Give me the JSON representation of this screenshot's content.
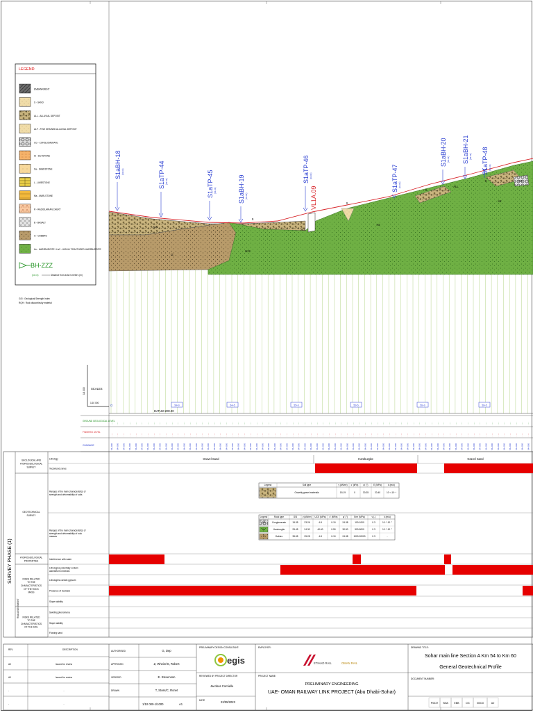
{
  "legend": {
    "title": "LEGEND",
    "items": [
      {
        "code": "EMB",
        "label": "EMBANKMENT"
      },
      {
        "code": "S",
        "label": "S - SAND"
      },
      {
        "code": "ALL",
        "label": "ALL - ALLUVIAL DEPOSIT"
      },
      {
        "code": "ALF",
        "label": "ALF - FINE GRAINED ALLUVIAL DEPOSIT"
      },
      {
        "code": "CG",
        "label": "CG - CONGLOMERATE"
      },
      {
        "code": "Si",
        "label": "Si - SILTSTONE"
      },
      {
        "code": "Sa",
        "label": "Sa - SANDSTONE"
      },
      {
        "code": "L",
        "label": "L - LIMESTONE"
      },
      {
        "code": "Ma",
        "label": "Ma - MARLSTONE"
      },
      {
        "code": "R",
        "label": "R - RADIOLARIAN CHERT"
      },
      {
        "code": "B",
        "label": "B - BASALT"
      },
      {
        "code": "G",
        "label": "G - GABBRO"
      },
      {
        "code": "Hz",
        "label": "Hz - HARZBURGITE / Hz2 - HIGHLY FRACTURED HARZBURGITE"
      }
    ],
    "borehole_label": "BH-ZZZ",
    "borehole_sub": "(xx.xx)",
    "borehole_note": "Distance from axis in meters (m)",
    "notes": [
      "GSI : Geological Strength Index",
      "RQH : Rock discontinuity material"
    ]
  },
  "profile": {
    "boreholes": [
      "S1aBH-18",
      "S1aTP-44",
      "S1aTP-45",
      "S1aBH-19",
      "S1aTP-46",
      "S1aTP-47",
      "S1aBH-20",
      "S1aBH-21",
      "S1aTP-48"
    ],
    "boreholes_sub": [
      "(xx.xx)",
      "(xx.xx)",
      "(xx.xx)",
      "(xx.xx)",
      "(xx.xx)",
      "(xx.xx)",
      "(xx.xx)",
      "(xx.xx)",
      "(xx.xx)"
    ],
    "structure_label": "VL1A.09",
    "unit_labels": [
      "ALL",
      "G",
      "S",
      "ALL",
      "Hz2",
      "Hz",
      "S",
      "S",
      "ALL",
      "Hz",
      "CG",
      "S"
    ],
    "scale_label": "SCALES",
    "scale_h": "1/10 000",
    "scale_v": "1/1 000",
    "datum": "DATUM 200.00",
    "chainage_tags": [
      "54+0",
      "54+5",
      "55+0",
      "55+5",
      "56+0",
      "56+5"
    ],
    "row_labels": [
      "GROUND GEOLOGICAL LEVEL",
      "FINISHED LEVEL",
      "CHAINAGE"
    ],
    "chainage_sample": "54+000"
  },
  "survey": {
    "phase_label": "SURVEY PHASE (1)",
    "risk_label": "Risk ASSESSMENT",
    "sections": [
      {
        "group": "GEOLOGICAL AND HYDROGEOLOGICAL SURVEY",
        "rows": [
          "Lithology",
          "Tectonized zones"
        ]
      },
      {
        "group": "GEOTECHNICAL SURVEY",
        "rows": [
          "Ranges of the main characteristics of strength and deformability of soils",
          "Ranges of the main characteristics of strength and deformability of rock masses"
        ]
      },
      {
        "group": "HYDROGEOLOGICAL PROPERTIES",
        "rows": [
          "Interference with water"
        ]
      },
      {
        "group": "RISKS RELATED TO THE CHARACTERISTICS OF THE ROCK MASS",
        "rows": [
          "Lithologies potentially contain asbestiform minerals",
          "Lithologies contain gypsum",
          "Presence of boulders",
          "Slope stability"
        ]
      },
      {
        "group": "RISKS RELATED TO THE CHARACTERISTICS OF THE SOIL",
        "rows": [
          "Swelling phenomena",
          "Slope stability",
          "Flowing sand"
        ]
      }
    ],
    "lithology_bands": [
      "Gravel Sand",
      "Harzburgite",
      "Gravel Sand"
    ],
    "soil_table": {
      "headers": [
        "Legend",
        "Soil type",
        "γ (kN/m³)",
        "c' (kPa)",
        "φ' (°)",
        "E (MPa)",
        "k (m/s)"
      ],
      "rows": [
        [
          "S",
          "Gravelly gravel materials",
          "18-19",
          "0",
          "30-35",
          "20-40",
          "10⁻³-10⁻⁴"
        ]
      ]
    },
    "rock_table": {
      "headers": [
        "Legend",
        "Rock type",
        "GSI",
        "γ (kN/m³)",
        "UCS (MPa)",
        "c' (MPa)",
        "φ' (°)",
        "Erm (MPa)",
        "ν (-)",
        "k (m/s)"
      ],
      "rows": [
        [
          "CG",
          "Conglomerate",
          "15-35",
          "23-26",
          "4-8",
          "0-10",
          "24-38",
          "100-1000",
          "0.3",
          "10⁻⁵-10⁻⁷"
        ],
        [
          "Hz",
          "Harzburgite",
          "25-45",
          "24-30",
          "40-60",
          "0-50",
          "30-50",
          "500-5000",
          "0.3",
          "10⁻⁵-10⁻⁷"
        ],
        [
          "G",
          "Gabbro",
          "35-55",
          "25-28",
          "4-8",
          "0-10",
          "24-38",
          "1000-20000",
          "0.3",
          "-"
        ]
      ]
    }
  },
  "title_block": {
    "revisions": [
      {
        "rev": "A0",
        "desc": "Issued for review"
      },
      {
        "rev": "A0",
        "desc": "Issued for review"
      },
      {
        "rev": "-",
        "desc": "-"
      },
      {
        "rev": "-",
        "desc": "-"
      }
    ],
    "rev_headers": [
      "REV.",
      "DESCRIPTION"
    ],
    "people": [
      {
        "role": "AUTHORISED",
        "name": "G, Dep"
      },
      {
        "role": "APPROVED",
        "name": "Z, Wheier/S, Robert"
      },
      {
        "role": "VERIFIED",
        "name": "E. Stevenson"
      },
      {
        "role": "DRAWN",
        "name": "T, Stoss/C, Ronet"
      }
    ],
    "scale": "1/10 000-1/1000",
    "sheet": "A1",
    "consultant_label": "PRELIMINARY DESIGN CONSULTANT:",
    "consultant_logo": "egis",
    "project_director_label": "REVIEWED BY PROJECT DIRECTOR",
    "project_director": "Jacobus Cornielle",
    "date_label": "DATE",
    "date": "22/05/2023",
    "employer_label": "EMPLOYER:",
    "employer_logo_1": "ETIHAD RAIL",
    "employer_logo_2": "OMAN RAIL",
    "project_label": "PROJECT NAME:",
    "project_phase": "PRELIMINARY ENGINEERING",
    "project_name": "UAE- OMAN RAILWAY LINK PROJECT (Abu Dhabi-Sohar)",
    "drawing_title_label": "DRAWING TITLE:",
    "drawing_title_1": "Sohar main line Section A Km 54 to Km 60",
    "drawing_title_2": "General Geotechnical Profile",
    "doc_number_label": "DOCUMENT NUMBER:",
    "doc_number": [
      "P0337",
      "SMA",
      "EBB",
      "DG",
      "00010",
      "A0"
    ]
  },
  "colors": {
    "risk_red": "#e60000",
    "gravel": "#c9b47e",
    "green": "#6ab04c",
    "line_red": "#d8262b",
    "blue": "#2b3fd1"
  }
}
